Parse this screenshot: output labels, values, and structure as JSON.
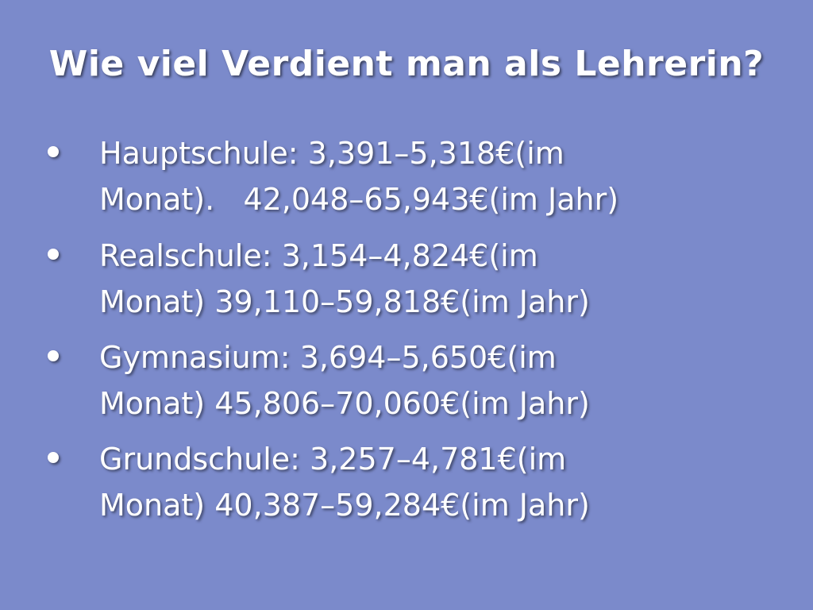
{
  "title": "Wie viel Verdient man als Lehrerin?",
  "bullets": [
    {
      "lines": [
        "Hauptschule: 3,391–5,318€(im",
        "Monat).   42,048–65,943€(im Jahr)"
      ]
    },
    {
      "lines": [
        "Realschule: 3,154–4,824€(im",
        "Monat) 39,110–59,818€(im Jahr)"
      ]
    },
    {
      "lines": [
        "Gymnasium: 3,694–5,650€(im",
        "Monat) 45,806–70,060€(im Jahr)"
      ]
    },
    {
      "lines": [
        "Grundschule: 3,257–4,781€(im",
        "Monat) 40,387–59,284€(im Jahr)"
      ]
    }
  ]
}
